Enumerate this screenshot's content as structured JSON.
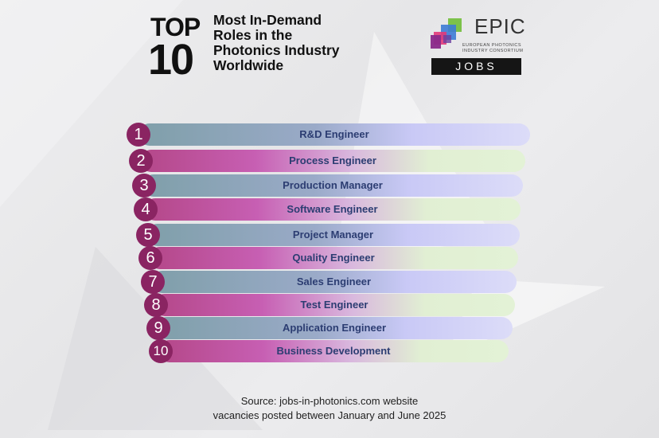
{
  "title": {
    "top": "TOP",
    "ten": "10",
    "lines": [
      "Most In-Demand",
      "Roles in the",
      "Photonics Industry",
      "Worldwide"
    ]
  },
  "logo": {
    "name": "EPIC",
    "subtitle_lines": [
      "EUROPEAN PHOTONICS",
      "INDUSTRY CONSORTIUM"
    ],
    "badge": "JOBS",
    "colors": [
      "#7cc24a",
      "#3d7bd6",
      "#e23a7a",
      "#8a2a8a"
    ]
  },
  "roles": [
    {
      "rank": "1",
      "label": "R&D Engineer"
    },
    {
      "rank": "2",
      "label": "Process Engineer"
    },
    {
      "rank": "3",
      "label": "Production Manager"
    },
    {
      "rank": "4",
      "label": "Software Engineer"
    },
    {
      "rank": "5",
      "label": "Project Manager"
    },
    {
      "rank": "6",
      "label": "Quality Engineer"
    },
    {
      "rank": "7",
      "label": "Sales Engineer"
    },
    {
      "rank": "8",
      "label": "Test Engineer"
    },
    {
      "rank": "9",
      "label": "Application Engineer"
    },
    {
      "rank": "10",
      "label": "Business Development"
    }
  ],
  "footer": {
    "line1": "Source: jobs-in-photonics.com website",
    "line2": "vacancies posted between January and June 2025"
  },
  "colors": {
    "badge": "#8a2462",
    "label_text": "#2c3d72"
  }
}
